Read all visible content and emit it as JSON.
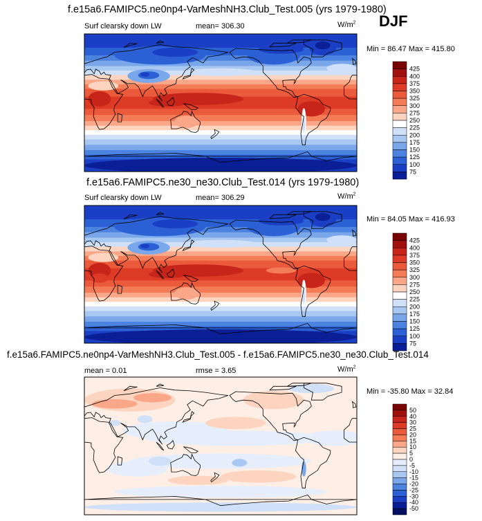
{
  "season": "DJF",
  "panels": [
    {
      "title": "f.e15a6.FAMIPC5.ne0np4-VarMeshNH3.Club_Test.005 (yrs 1979-1980)",
      "left_label": "Surf clearsky down LW",
      "center_label": "mean= 306.30",
      "units_base": "W/m",
      "units_exp": "2",
      "minmax": "Min =  86.47 Max = 415.80"
    },
    {
      "title": "f.e15a6.FAMIPC5.ne30_ne30.Club_Test.014 (yrs 1979-1980)",
      "left_label": "Surf clearsky down LW",
      "center_label": "mean= 306.29",
      "units_base": "W/m",
      "units_exp": "2",
      "minmax": "Min =  84.05 Max = 416.93"
    },
    {
      "title": "f.e15a6.FAMIPC5.ne0np4-VarMeshNH3.Club_Test.005 - f.e15a6.FAMIPC5.ne30_ne30.Club_Test.014",
      "left_label": "mean =   0.01",
      "center_label": "rmse =    3.65",
      "units_base": "W/m",
      "units_exp": "2",
      "minmax": "Min = -35.80 Max =  32.84"
    }
  ],
  "chart_data": [
    {
      "type": "heatmap",
      "field": "Surf clearsky down LW",
      "mean": 306.3,
      "min": 86.47,
      "max": 415.8,
      "colorbar_levels": [
        "425",
        "400",
        "375",
        "350",
        "325",
        "300",
        "275",
        "250",
        "225",
        "200",
        "175",
        "150",
        "125",
        "100",
        "75"
      ],
      "colorbar_colors": [
        "#7a0403",
        "#a0110d",
        "#c8251a",
        "#dd3b25",
        "#ec5a3c",
        "#f47d57",
        "#f9a788",
        "#fcd4c0",
        "#ffffff",
        "#cfe0f8",
        "#a8c8f2",
        "#7aa6ea",
        "#4d83e0",
        "#2c61d6",
        "#1a3fc4",
        "#0a1e96"
      ]
    },
    {
      "type": "heatmap",
      "field": "Surf clearsky down LW",
      "mean": 306.29,
      "min": 84.05,
      "max": 416.93,
      "colorbar_levels": [
        "425",
        "400",
        "375",
        "350",
        "325",
        "300",
        "275",
        "250",
        "225",
        "200",
        "175",
        "150",
        "125",
        "100",
        "75"
      ],
      "colorbar_colors": [
        "#7a0403",
        "#a0110d",
        "#c8251a",
        "#dd3b25",
        "#ec5a3c",
        "#f47d57",
        "#f9a788",
        "#fcd4c0",
        "#ffffff",
        "#cfe0f8",
        "#a8c8f2",
        "#7aa6ea",
        "#4d83e0",
        "#2c61d6",
        "#1a3fc4",
        "#0a1e96"
      ]
    },
    {
      "type": "heatmap",
      "field": "difference",
      "mean": 0.01,
      "rmse": 3.65,
      "min": -35.8,
      "max": 32.84,
      "colorbar_levels": [
        "50",
        "40",
        "30",
        "25",
        "20",
        "15",
        "10",
        "5",
        "0",
        "-5",
        "-10",
        "-15",
        "-20",
        "-25",
        "-30",
        "-40",
        "-50"
      ],
      "colorbar_colors": [
        "#7a0403",
        "#a0110d",
        "#c8251a",
        "#dd3b25",
        "#ec5a3c",
        "#f47d57",
        "#f9a788",
        "#fcd4c0",
        "#fdeee6",
        "#e6eefc",
        "#cfe0f8",
        "#a8c8f2",
        "#7aa6ea",
        "#4d83e0",
        "#2c61d6",
        "#1a3fc4",
        "#0a1e96",
        "#061060"
      ]
    }
  ]
}
